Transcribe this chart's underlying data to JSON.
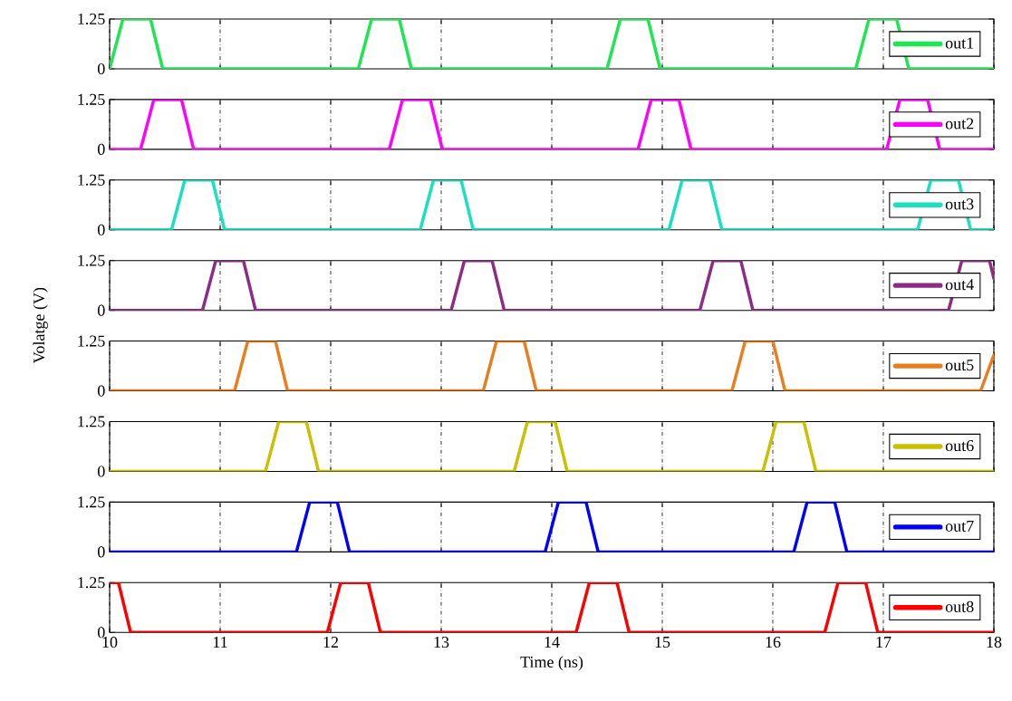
{
  "chart_data": [
    {
      "type": "line",
      "ylim": [
        0,
        1.25
      ],
      "yticks": [
        0,
        1.25
      ],
      "xlim": [
        10,
        18
      ],
      "xticks": [
        10,
        11,
        12,
        13,
        14,
        15,
        16,
        17,
        18
      ],
      "grid": "x",
      "legend": "right",
      "tick_labels": "y",
      "series": [
        {
          "name": "out1",
          "color": "#1ee650",
          "x": [
            10,
            10.12,
            10.37,
            10.48,
            12.25,
            12.37,
            12.62,
            12.73,
            14.5,
            14.62,
            14.87,
            14.98,
            16.75,
            16.87,
            17.12,
            17.23,
            18
          ],
          "values": [
            0,
            1.25,
            1.25,
            0,
            0,
            1.25,
            1.25,
            0,
            0,
            1.25,
            1.25,
            0,
            0,
            1.25,
            1.25,
            0,
            0
          ]
        }
      ]
    },
    {
      "type": "line",
      "ylim": [
        0,
        1.25
      ],
      "yticks": [
        0,
        1.25
      ],
      "xlim": [
        10,
        18
      ],
      "xticks": [
        10,
        11,
        12,
        13,
        14,
        15,
        16,
        17,
        18
      ],
      "grid": "x",
      "legend": "right",
      "tick_labels": "y",
      "series": [
        {
          "name": "out2",
          "color": "#ff00ff",
          "x": [
            10,
            10.28,
            10.4,
            10.65,
            10.76,
            12.53,
            12.65,
            12.9,
            13.01,
            14.78,
            14.9,
            15.15,
            15.26,
            17.03,
            17.15,
            17.4,
            17.51,
            18
          ],
          "values": [
            0,
            0,
            1.25,
            1.25,
            0,
            0,
            1.25,
            1.25,
            0,
            0,
            1.25,
            1.25,
            0,
            0,
            1.25,
            1.25,
            0,
            0
          ]
        }
      ]
    },
    {
      "type": "line",
      "ylim": [
        0,
        1.25
      ],
      "yticks": [
        0,
        1.25
      ],
      "xlim": [
        10,
        18
      ],
      "xticks": [
        10,
        11,
        12,
        13,
        14,
        15,
        16,
        17,
        18
      ],
      "grid": "x",
      "legend": "right",
      "tick_labels": "y",
      "series": [
        {
          "name": "out3",
          "color": "#18e0c0",
          "x": [
            10,
            10.56,
            10.68,
            10.93,
            11.04,
            12.81,
            12.93,
            13.18,
            13.29,
            15.06,
            15.18,
            15.43,
            15.54,
            17.31,
            17.43,
            17.68,
            17.79,
            18
          ],
          "values": [
            0,
            0,
            1.25,
            1.25,
            0,
            0,
            1.25,
            1.25,
            0,
            0,
            1.25,
            1.25,
            0,
            0,
            1.25,
            1.25,
            0,
            0
          ]
        }
      ]
    },
    {
      "type": "line",
      "ylim": [
        0,
        1.25
      ],
      "yticks": [
        0,
        1.25
      ],
      "xlim": [
        10,
        18
      ],
      "xticks": [
        10,
        11,
        12,
        13,
        14,
        15,
        16,
        17,
        18
      ],
      "grid": "x",
      "legend": "right",
      "tick_labels": "y",
      "ylabel": "Volatge (V)",
      "series": [
        {
          "name": "out4",
          "color": "#8c2c84",
          "x": [
            10,
            10.84,
            10.96,
            11.21,
            11.32,
            13.09,
            13.21,
            13.46,
            13.57,
            15.34,
            15.46,
            15.71,
            15.82,
            17.59,
            17.71,
            17.96,
            18
          ],
          "values": [
            0,
            0,
            1.25,
            1.25,
            0,
            0,
            1.25,
            1.25,
            0,
            0,
            1.25,
            1.25,
            0,
            0,
            1.25,
            1.25,
            0.8
          ]
        }
      ]
    },
    {
      "type": "line",
      "ylim": [
        0,
        1.25
      ],
      "yticks": [
        0,
        1.25
      ],
      "xlim": [
        10,
        18
      ],
      "xticks": [
        10,
        11,
        12,
        13,
        14,
        15,
        16,
        17,
        18
      ],
      "grid": "x",
      "legend": "right",
      "tick_labels": "y",
      "series": [
        {
          "name": "out5",
          "color": "#e87d1c",
          "x": [
            10,
            11.13,
            11.25,
            11.5,
            11.61,
            13.38,
            13.5,
            13.75,
            13.86,
            15.63,
            15.75,
            16.0,
            16.11,
            17.88,
            18
          ],
          "values": [
            0,
            0,
            1.25,
            1.25,
            0,
            0,
            1.25,
            1.25,
            0,
            0,
            1.25,
            1.25,
            0,
            0,
            0.9
          ]
        }
      ]
    },
    {
      "type": "line",
      "ylim": [
        0,
        1.25
      ],
      "yticks": [
        0,
        1.25
      ],
      "xlim": [
        10,
        18
      ],
      "xticks": [
        10,
        11,
        12,
        13,
        14,
        15,
        16,
        17,
        18
      ],
      "grid": "x",
      "legend": "right",
      "tick_labels": "y",
      "series": [
        {
          "name": "out6",
          "color": "#c8c000",
          "x": [
            10,
            11.41,
            11.53,
            11.78,
            11.89,
            13.66,
            13.78,
            14.03,
            14.14,
            15.91,
            16.03,
            16.28,
            16.39,
            18
          ],
          "values": [
            0,
            0,
            1.25,
            1.25,
            0,
            0,
            1.25,
            1.25,
            0,
            0,
            1.25,
            1.25,
            0,
            0
          ]
        }
      ]
    },
    {
      "type": "line",
      "ylim": [
        0,
        1.25
      ],
      "yticks": [
        0,
        1.25
      ],
      "xlim": [
        10,
        18
      ],
      "xticks": [
        10,
        11,
        12,
        13,
        14,
        15,
        16,
        17,
        18
      ],
      "grid": "x",
      "legend": "right",
      "tick_labels": "y",
      "series": [
        {
          "name": "out7",
          "color": "#0000ff",
          "x": [
            10,
            11.69,
            11.81,
            12.06,
            12.17,
            13.94,
            14.06,
            14.31,
            14.42,
            16.19,
            16.31,
            16.56,
            16.67,
            18
          ],
          "values": [
            0,
            0,
            1.25,
            1.25,
            0,
            0,
            1.25,
            1.25,
            0,
            0,
            1.25,
            1.25,
            0,
            0
          ]
        }
      ]
    },
    {
      "type": "line",
      "ylim": [
        0,
        1.25
      ],
      "yticks": [
        0,
        1.25
      ],
      "xlim": [
        10,
        18
      ],
      "xticks": [
        10,
        11,
        12,
        13,
        14,
        15,
        16,
        17,
        18
      ],
      "grid": "x",
      "legend": "right",
      "xlabel": "Time (ns)",
      "series": [
        {
          "name": "out8",
          "color": "#ff0000",
          "x": [
            10,
            10.08,
            10.19,
            11.97,
            12.09,
            12.34,
            12.45,
            14.22,
            14.34,
            14.59,
            14.7,
            16.47,
            16.59,
            16.84,
            16.95,
            18
          ],
          "values": [
            1.25,
            1.25,
            0,
            0,
            1.25,
            1.25,
            0,
            0,
            1.25,
            1.25,
            0,
            0,
            1.25,
            1.25,
            0,
            0
          ]
        }
      ]
    }
  ]
}
